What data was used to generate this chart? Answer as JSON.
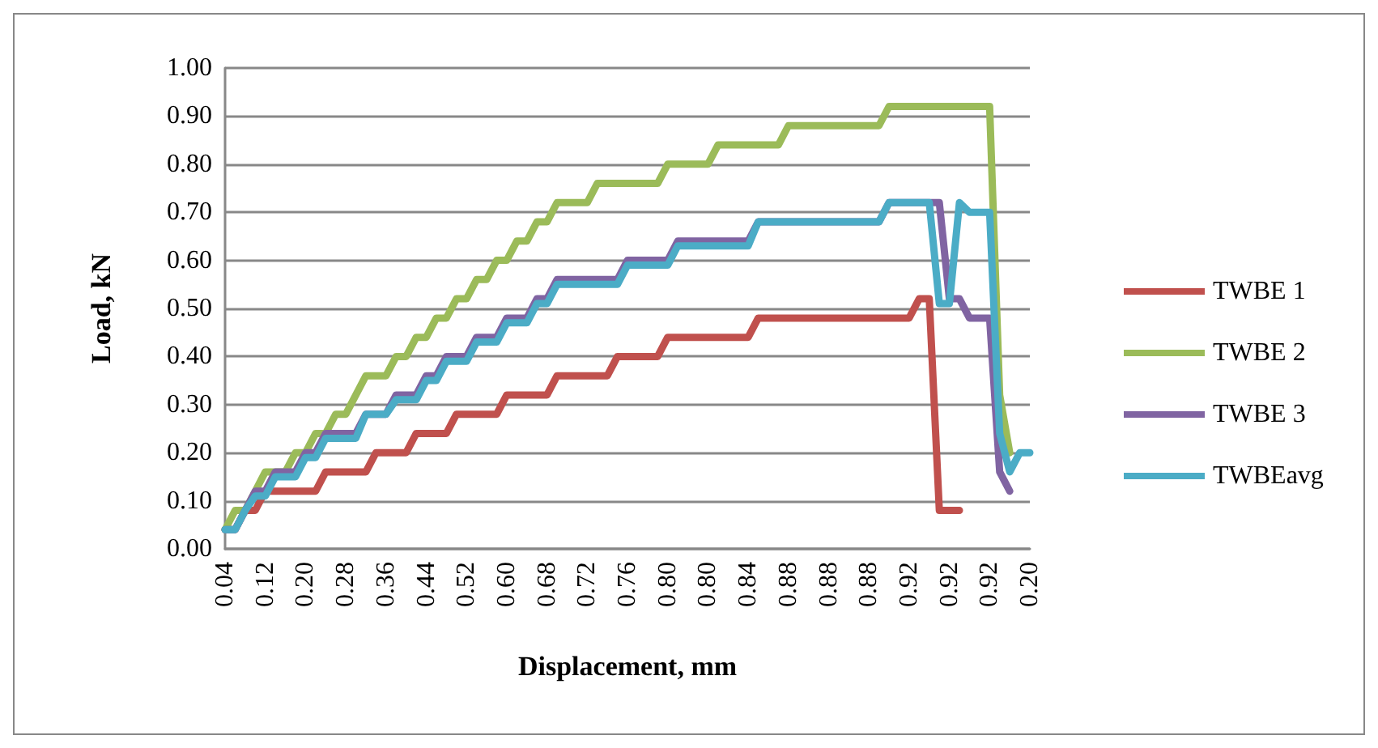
{
  "chart_data": {
    "type": "line",
    "xlabel": "Displacement, mm",
    "ylabel": "Load, kN",
    "categories": [
      "0.04",
      null,
      null,
      null,
      "0.12",
      null,
      null,
      null,
      "0.20",
      null,
      null,
      null,
      "0.28",
      null,
      null,
      null,
      "0.36",
      null,
      null,
      null,
      "0.44",
      null,
      null,
      null,
      "0.52",
      null,
      null,
      null,
      "0.60",
      null,
      null,
      null,
      "0.68",
      null,
      null,
      null,
      "0.72",
      null,
      null,
      null,
      "0.76",
      null,
      null,
      null,
      "0.80",
      null,
      null,
      null,
      "0.80",
      null,
      null,
      null,
      "0.84",
      null,
      null,
      null,
      "0.88",
      null,
      null,
      null,
      "0.88",
      null,
      null,
      null,
      "0.88",
      null,
      null,
      null,
      "0.92",
      null,
      null,
      null,
      "0.92",
      null,
      null,
      null,
      "0.92",
      null,
      null,
      null,
      "0.20"
    ],
    "series": [
      {
        "name": "TWBE 1",
        "color": "#c0504d",
        "values": [
          0.04,
          0.04,
          0.08,
          0.08,
          0.12,
          0.12,
          0.12,
          0.12,
          0.12,
          0.12,
          0.16,
          0.16,
          0.16,
          0.16,
          0.16,
          0.2,
          0.2,
          0.2,
          0.2,
          0.24,
          0.24,
          0.24,
          0.24,
          0.28,
          0.28,
          0.28,
          0.28,
          0.28,
          0.32,
          0.32,
          0.32,
          0.32,
          0.32,
          0.36,
          0.36,
          0.36,
          0.36,
          0.36,
          0.36,
          0.4,
          0.4,
          0.4,
          0.4,
          0.4,
          0.44,
          0.44,
          0.44,
          0.44,
          0.44,
          0.44,
          0.44,
          0.44,
          0.44,
          0.48,
          0.48,
          0.48,
          0.48,
          0.48,
          0.48,
          0.48,
          0.48,
          0.48,
          0.48,
          0.48,
          0.48,
          0.48,
          0.48,
          0.48,
          0.48,
          0.52,
          0.52,
          0.08,
          0.08,
          0.08,
          null,
          null,
          null,
          null,
          null,
          null,
          null
        ]
      },
      {
        "name": "TWBE 2",
        "color": "#9bbb59",
        "values": [
          0.04,
          0.08,
          0.08,
          0.12,
          0.16,
          0.16,
          0.16,
          0.2,
          0.2,
          0.24,
          0.24,
          0.28,
          0.28,
          0.32,
          0.36,
          0.36,
          0.36,
          0.4,
          0.4,
          0.44,
          0.44,
          0.48,
          0.48,
          0.52,
          0.52,
          0.56,
          0.56,
          0.6,
          0.6,
          0.64,
          0.64,
          0.68,
          0.68,
          0.72,
          0.72,
          0.72,
          0.72,
          0.76,
          0.76,
          0.76,
          0.76,
          0.76,
          0.76,
          0.76,
          0.8,
          0.8,
          0.8,
          0.8,
          0.8,
          0.84,
          0.84,
          0.84,
          0.84,
          0.84,
          0.84,
          0.84,
          0.88,
          0.88,
          0.88,
          0.88,
          0.88,
          0.88,
          0.88,
          0.88,
          0.88,
          0.88,
          0.92,
          0.92,
          0.92,
          0.92,
          0.92,
          0.92,
          0.92,
          0.92,
          0.92,
          0.92,
          0.92,
          0.32,
          0.2,
          null,
          null
        ]
      },
      {
        "name": "TWBE 3",
        "color": "#8064a2",
        "values": [
          0.04,
          0.04,
          0.08,
          0.12,
          0.12,
          0.16,
          0.16,
          0.16,
          0.2,
          0.2,
          0.24,
          0.24,
          0.24,
          0.24,
          0.28,
          0.28,
          0.28,
          0.32,
          0.32,
          0.32,
          0.36,
          0.36,
          0.4,
          0.4,
          0.4,
          0.44,
          0.44,
          0.44,
          0.48,
          0.48,
          0.48,
          0.52,
          0.52,
          0.56,
          0.56,
          0.56,
          0.56,
          0.56,
          0.56,
          0.56,
          0.6,
          0.6,
          0.6,
          0.6,
          0.6,
          0.64,
          0.64,
          0.64,
          0.64,
          0.64,
          0.64,
          0.64,
          0.64,
          0.68,
          0.68,
          0.68,
          0.68,
          0.68,
          0.68,
          0.68,
          0.68,
          0.68,
          0.68,
          0.68,
          0.68,
          0.68,
          0.72,
          0.72,
          0.72,
          0.72,
          0.72,
          0.72,
          0.52,
          0.52,
          0.48,
          0.48,
          0.48,
          0.16,
          0.12,
          null,
          null
        ]
      },
      {
        "name": "TWBEavg",
        "color": "#4bacc6",
        "values": [
          0.04,
          0.04,
          0.08,
          0.11,
          0.11,
          0.15,
          0.15,
          0.15,
          0.19,
          0.19,
          0.23,
          0.23,
          0.23,
          0.23,
          0.28,
          0.28,
          0.28,
          0.31,
          0.31,
          0.31,
          0.35,
          0.35,
          0.39,
          0.39,
          0.39,
          0.43,
          0.43,
          0.43,
          0.47,
          0.47,
          0.47,
          0.51,
          0.51,
          0.55,
          0.55,
          0.55,
          0.55,
          0.55,
          0.55,
          0.55,
          0.59,
          0.59,
          0.59,
          0.59,
          0.59,
          0.63,
          0.63,
          0.63,
          0.63,
          0.63,
          0.63,
          0.63,
          0.63,
          0.68,
          0.68,
          0.68,
          0.68,
          0.68,
          0.68,
          0.68,
          0.68,
          0.68,
          0.68,
          0.68,
          0.68,
          0.68,
          0.72,
          0.72,
          0.72,
          0.72,
          0.72,
          0.51,
          0.51,
          0.72,
          0.7,
          0.7,
          0.7,
          0.24,
          0.16,
          0.2,
          0.2
        ]
      }
    ],
    "ylim": [
      0,
      1
    ],
    "yticks": [
      {
        "value": 0,
        "label": "0.00"
      },
      {
        "value": 0.1,
        "label": "0.10"
      },
      {
        "value": 0.2,
        "label": "0.20"
      },
      {
        "value": 0.3,
        "label": "0.30"
      },
      {
        "value": 0.4,
        "label": "0.40"
      },
      {
        "value": 0.5,
        "label": "0.50"
      },
      {
        "value": 0.6,
        "label": "0.60"
      },
      {
        "value": 0.7,
        "label": "0.70"
      },
      {
        "value": 0.8,
        "label": "0.80"
      },
      {
        "value": 0.9,
        "label": "0.90"
      },
      {
        "value": 1,
        "label": "1.00"
      }
    ],
    "grid": "y",
    "legend": "right",
    "marker": "none",
    "line_style": "solid"
  }
}
